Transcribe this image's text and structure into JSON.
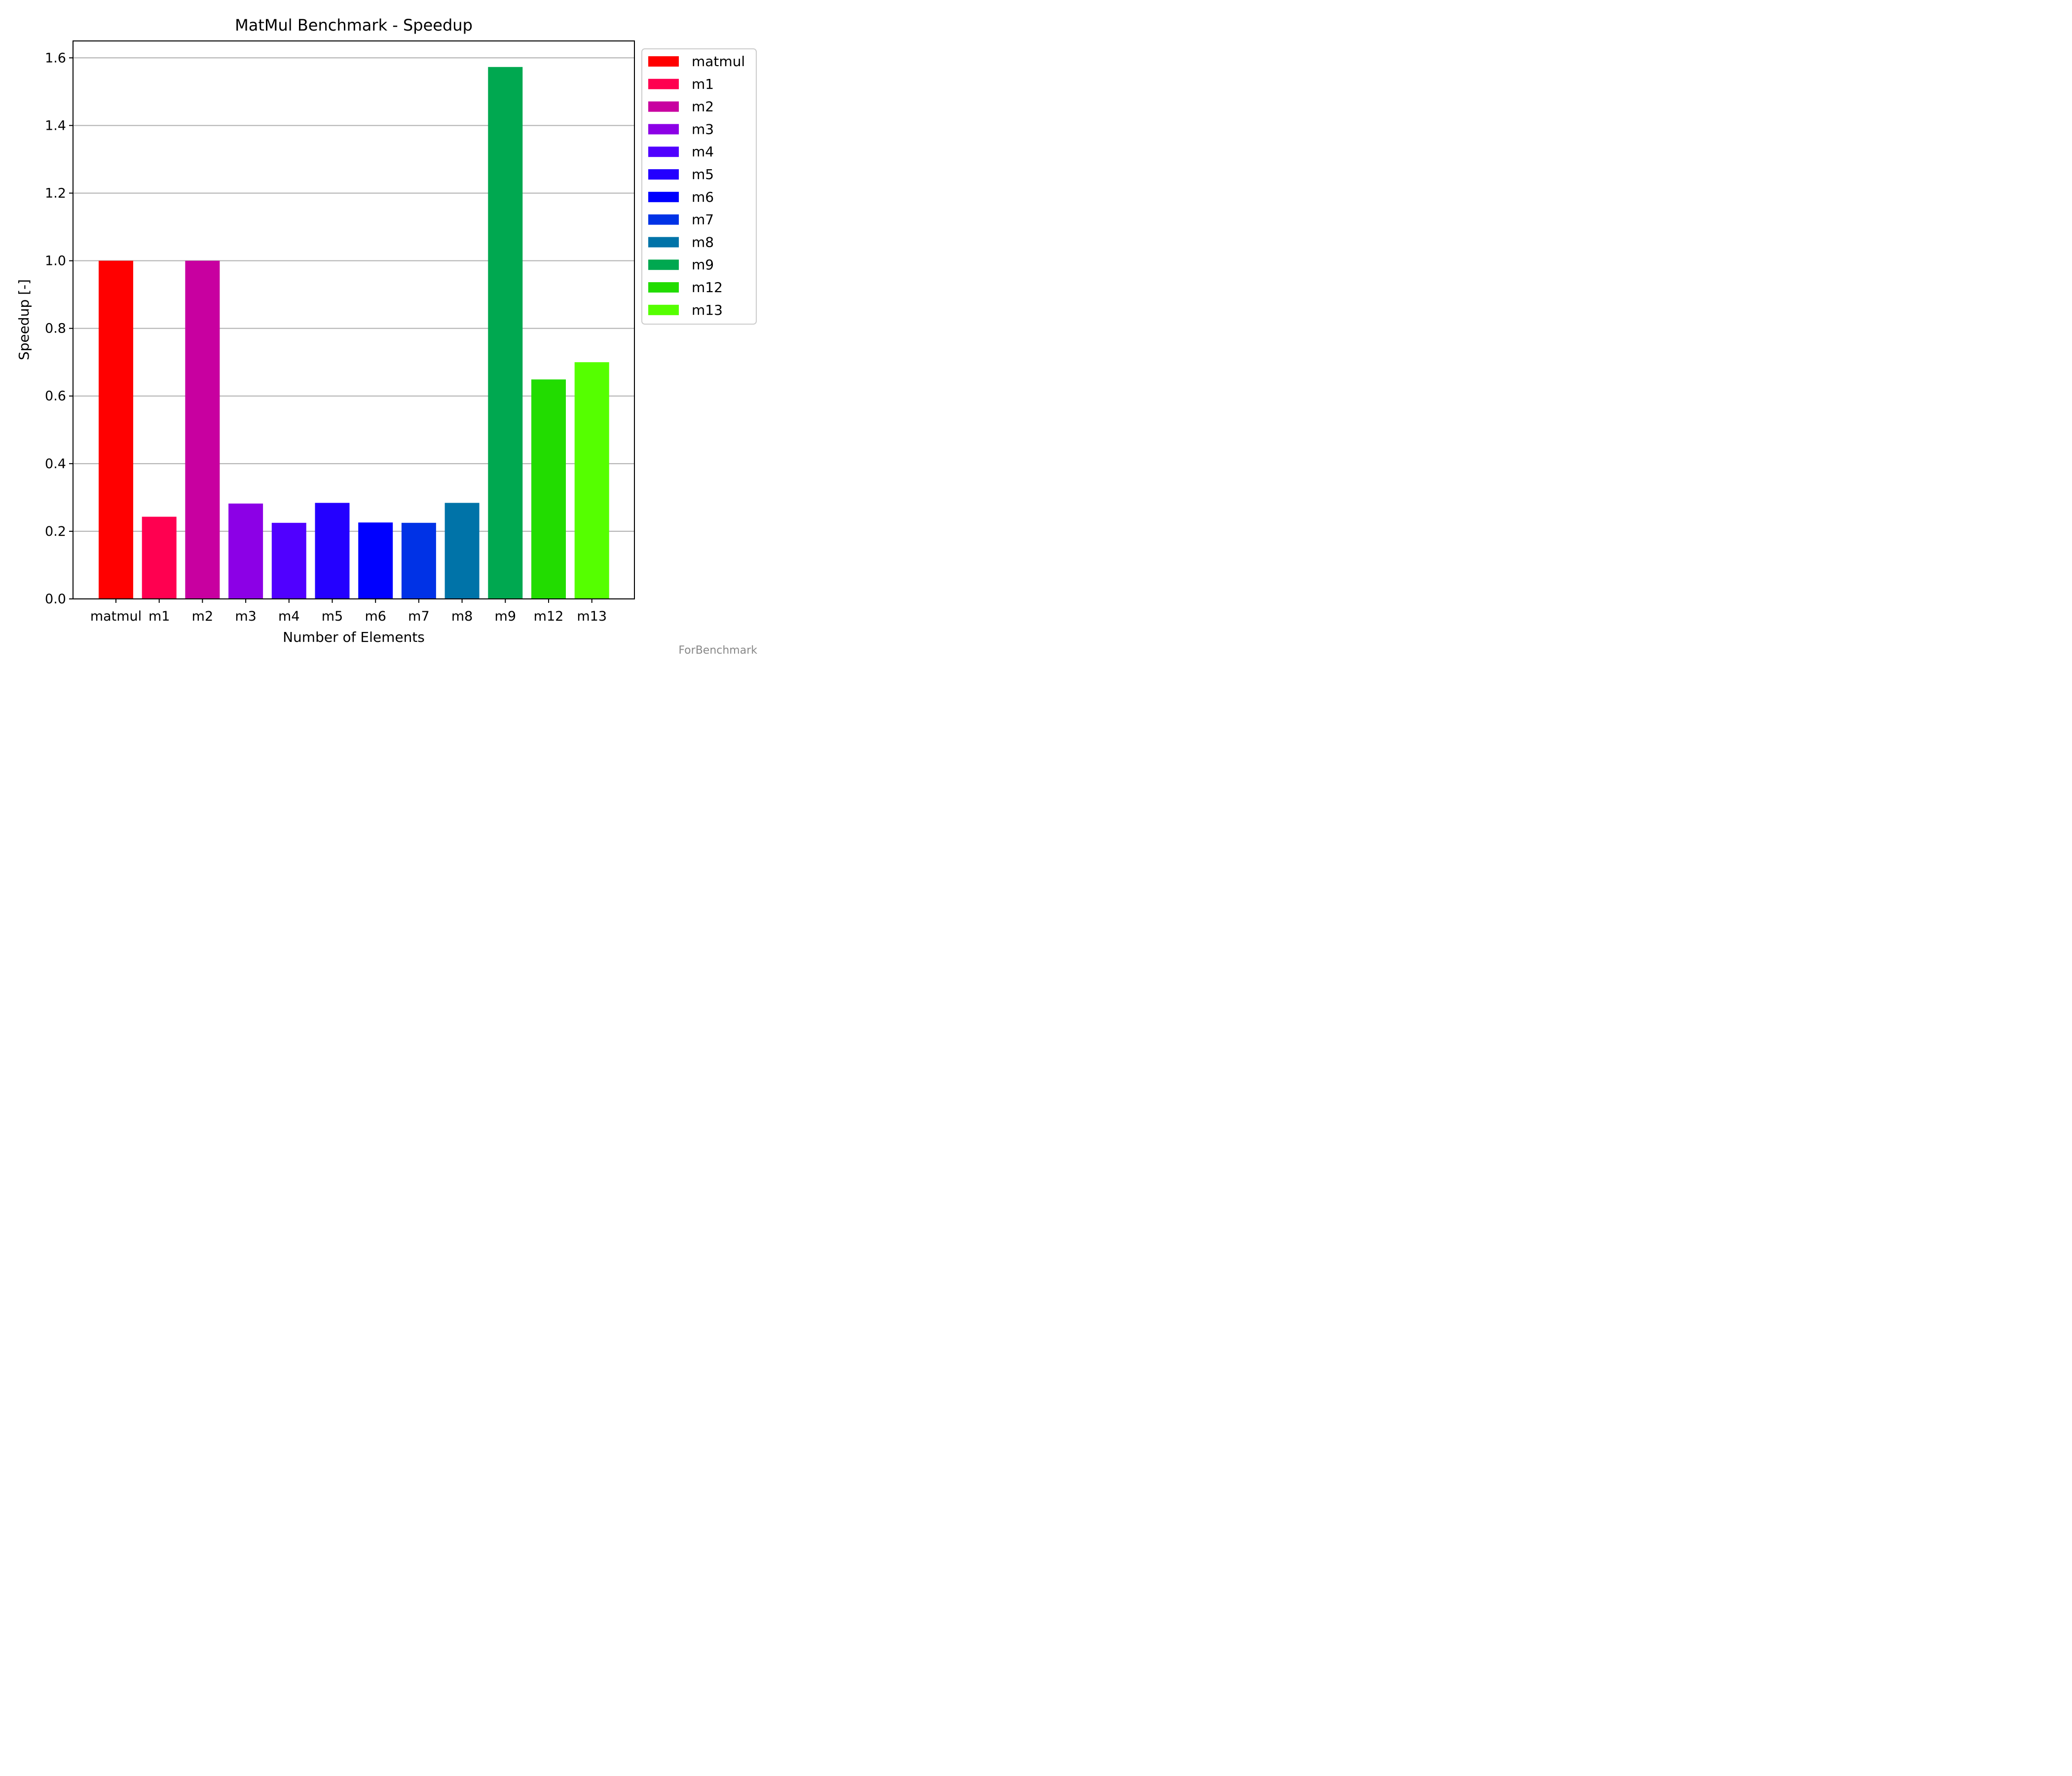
{
  "chart_data": {
    "type": "bar",
    "title": "MatMul Benchmark - Speedup",
    "xlabel": "Number of Elements",
    "ylabel": "Speedup [-]",
    "ylim": [
      0,
      1.65
    ],
    "yticks": [
      "0.0",
      "0.2",
      "0.4",
      "0.6",
      "0.8",
      "1.0",
      "1.2",
      "1.4",
      "1.6"
    ],
    "grid": "horizontal",
    "legend_position": "outside-top-right",
    "categories": [
      "matmul",
      "m1",
      "m2",
      "m3",
      "m4",
      "m5",
      "m6",
      "m7",
      "m8",
      "m9",
      "m12",
      "m13"
    ],
    "values": [
      1.0,
      0.243,
      1.0,
      0.282,
      0.225,
      0.284,
      0.226,
      0.225,
      0.284,
      1.573,
      0.649,
      0.7
    ],
    "colors": [
      "#ff0000",
      "#ff0050",
      "#c800a0",
      "#8c00e6",
      "#5000ff",
      "#2400ff",
      "#0000ff",
      "#0032e6",
      "#0073a8",
      "#00a850",
      "#22dc00",
      "#55ff00"
    ]
  },
  "watermark": "ForBenchmark"
}
